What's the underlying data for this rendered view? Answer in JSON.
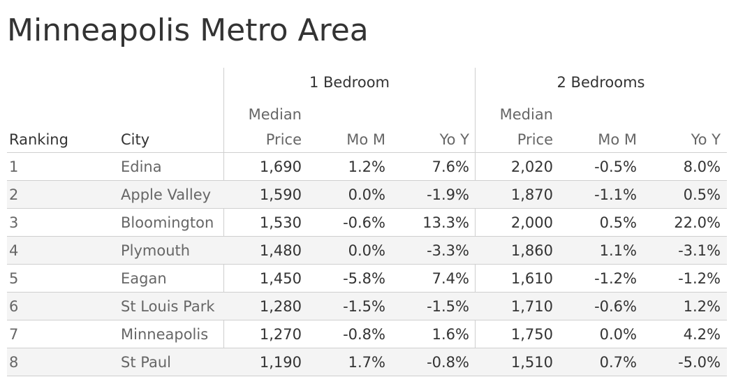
{
  "title": "Minneapolis Metro Area",
  "group_headers": [
    "1 Bedroom",
    "2 Bedrooms"
  ],
  "columns": {
    "ranking": "Ranking",
    "city": "City",
    "median_top": "Median",
    "median_bottom": "Price",
    "mom": "Mo M",
    "yoy": "Yo Y"
  },
  "chart_data": {
    "type": "table",
    "title": "Minneapolis Metro Area",
    "columns": [
      "Ranking",
      "City",
      "1 Bedroom Median Price",
      "1 Bedroom Mo M",
      "1 Bedroom Yo Y",
      "2 Bedrooms Median Price",
      "2 Bedrooms Mo M",
      "2 Bedrooms Yo Y"
    ],
    "rows": [
      {
        "rank": "1",
        "city": "Edina",
        "b1_price": "1,690",
        "b1_mom": "1.2%",
        "b1_yoy": "7.6%",
        "b2_price": "2,020",
        "b2_mom": "-0.5%",
        "b2_yoy": "8.0%"
      },
      {
        "rank": "2",
        "city": "Apple Valley",
        "b1_price": "1,590",
        "b1_mom": "0.0%",
        "b1_yoy": "-1.9%",
        "b2_price": "1,870",
        "b2_mom": "-1.1%",
        "b2_yoy": "0.5%"
      },
      {
        "rank": "3",
        "city": "Bloomington",
        "b1_price": "1,530",
        "b1_mom": "-0.6%",
        "b1_yoy": "13.3%",
        "b2_price": "2,000",
        "b2_mom": "0.5%",
        "b2_yoy": "22.0%"
      },
      {
        "rank": "4",
        "city": "Plymouth",
        "b1_price": "1,480",
        "b1_mom": "0.0%",
        "b1_yoy": "-3.3%",
        "b2_price": "1,860",
        "b2_mom": "1.1%",
        "b2_yoy": "-3.1%"
      },
      {
        "rank": "5",
        "city": "Eagan",
        "b1_price": "1,450",
        "b1_mom": "-5.8%",
        "b1_yoy": "7.4%",
        "b2_price": "1,610",
        "b2_mom": "-1.2%",
        "b2_yoy": "-1.2%"
      },
      {
        "rank": "6",
        "city": "St Louis Park",
        "b1_price": "1,280",
        "b1_mom": "-1.5%",
        "b1_yoy": "-1.5%",
        "b2_price": "1,710",
        "b2_mom": "-0.6%",
        "b2_yoy": "1.2%"
      },
      {
        "rank": "7",
        "city": "Minneapolis",
        "b1_price": "1,270",
        "b1_mom": "-0.8%",
        "b1_yoy": "1.6%",
        "b2_price": "1,750",
        "b2_mom": "0.0%",
        "b2_yoy": "4.2%"
      },
      {
        "rank": "8",
        "city": "St Paul",
        "b1_price": "1,190",
        "b1_mom": "1.7%",
        "b1_yoy": "-0.8%",
        "b2_price": "1,510",
        "b2_mom": "0.7%",
        "b2_yoy": "-5.0%"
      }
    ]
  }
}
